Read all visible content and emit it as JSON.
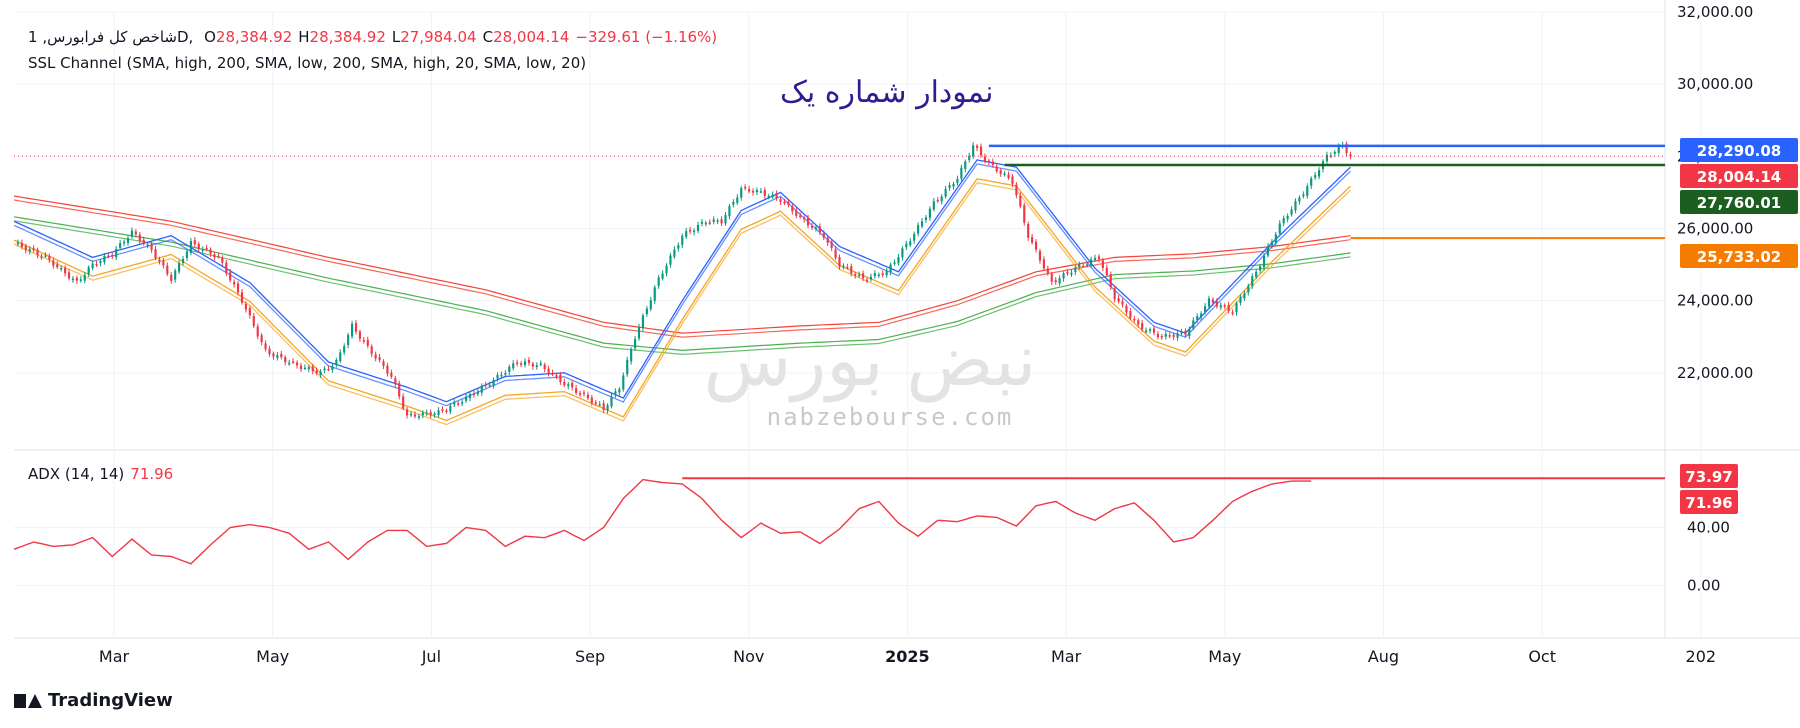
{
  "header": {
    "symbol": "شاخص کل فرابورس, 1D, ",
    "open_label": "O",
    "open": "28,384.92",
    "high_label": "H",
    "high": "28,384.92",
    "low_label": "L",
    "low": "27,984.04",
    "close_label": "C",
    "close": "28,004.14",
    "change": "−329.61 (−1.16%)",
    "indicator": "SSL Channel (SMA, high, 200, SMA, low, 200, SMA, high, 20, SMA, low, 20)",
    "adx_label": "ADX (14, 14)",
    "adx_value": "71.96"
  },
  "annotation_title": "نمودار شماره یک",
  "watermark": {
    "logo_text": "نبض بورس",
    "url": "nabzebourse.com"
  },
  "footer": {
    "brand": "TradingView"
  },
  "colors": {
    "up": "#089981",
    "down": "#f23645",
    "ssl_fast": "#f5a623",
    "ssl_fast_low": "#2962ff",
    "ssl_slow_high": "#f44336",
    "ssl_slow_low": "#4caf50",
    "level_blue": "#2962ff",
    "level_green": "#1b5e20",
    "level_orange": "#f57c00",
    "adx": "#f23645"
  },
  "chart_data": [
    {
      "type": "candlestick",
      "title": "شاخص کل فرابورس, 1D",
      "xlabel": "",
      "ylabel": "",
      "ylim": [
        20000,
        32000
      ],
      "yticks": [
        "22,000.00",
        "24,000.00",
        "26,000.00",
        "28,000.00",
        "30,000.00",
        "32,000.00"
      ],
      "xticks": [
        "Mar",
        "May",
        "Jul",
        "Sep",
        "Nov",
        "2025",
        "Mar",
        "May",
        "Aug",
        "Oct",
        "202"
      ],
      "close_series": [
        [
          0,
          25600
        ],
        [
          8,
          25200
        ],
        [
          16,
          24500
        ],
        [
          20,
          25000
        ],
        [
          25,
          25300
        ],
        [
          30,
          25900
        ],
        [
          35,
          25400
        ],
        [
          40,
          24600
        ],
        [
          45,
          25600
        ],
        [
          52,
          25200
        ],
        [
          58,
          24000
        ],
        [
          64,
          22600
        ],
        [
          72,
          22200
        ],
        [
          78,
          22000
        ],
        [
          82,
          22300
        ],
        [
          86,
          23300
        ],
        [
          90,
          22700
        ],
        [
          96,
          21900
        ],
        [
          100,
          20800
        ],
        [
          108,
          20900
        ],
        [
          115,
          21300
        ],
        [
          122,
          21800
        ],
        [
          128,
          22300
        ],
        [
          134,
          22200
        ],
        [
          140,
          21700
        ],
        [
          146,
          21300
        ],
        [
          150,
          21000
        ],
        [
          154,
          21600
        ],
        [
          158,
          23000
        ],
        [
          164,
          24600
        ],
        [
          170,
          25800
        ],
        [
          176,
          26200
        ],
        [
          180,
          26200
        ],
        [
          185,
          27100
        ],
        [
          190,
          27000
        ],
        [
          195,
          26800
        ],
        [
          200,
          26300
        ],
        [
          206,
          25800
        ],
        [
          210,
          25000
        ],
        [
          216,
          24600
        ],
        [
          222,
          24800
        ],
        [
          228,
          25700
        ],
        [
          234,
          26700
        ],
        [
          240,
          27400
        ],
        [
          244,
          28300
        ],
        [
          248,
          27800
        ],
        [
          254,
          27300
        ],
        [
          258,
          25800
        ],
        [
          264,
          24500
        ],
        [
          270,
          24900
        ],
        [
          276,
          25200
        ],
        [
          280,
          24100
        ],
        [
          286,
          23300
        ],
        [
          292,
          23000
        ],
        [
          298,
          23100
        ],
        [
          304,
          24000
        ],
        [
          310,
          23700
        ],
        [
          316,
          24800
        ],
        [
          322,
          26100
        ],
        [
          328,
          27000
        ],
        [
          334,
          28000
        ],
        [
          338,
          28300
        ],
        [
          340,
          28004
        ]
      ],
      "series": [
        {
          "name": "SSL 20 high",
          "values": [
            [
              0,
              26200
            ],
            [
              20,
              25200
            ],
            [
              40,
              25800
            ],
            [
              60,
              24500
            ],
            [
              80,
              22300
            ],
            [
              100,
              21600
            ],
            [
              110,
              21200
            ],
            [
              125,
              21900
            ],
            [
              140,
              22000
            ],
            [
              155,
              21300
            ],
            [
              170,
              24000
            ],
            [
              185,
              26500
            ],
            [
              195,
              27000
            ],
            [
              210,
              25500
            ],
            [
              225,
              24800
            ],
            [
              245,
              27900
            ],
            [
              255,
              27700
            ],
            [
              275,
              24900
            ],
            [
              290,
              23400
            ],
            [
              298,
              23100
            ],
            [
              320,
              25600
            ],
            [
              340,
              27700
            ]
          ]
        },
        {
          "name": "SSL 20 low",
          "values": [
            [
              0,
              25900
            ],
            [
              20,
              24900
            ],
            [
              40,
              25500
            ],
            [
              60,
              24200
            ],
            [
              80,
              22000
            ],
            [
              100,
              21300
            ],
            [
              110,
              20900
            ],
            [
              125,
              21600
            ],
            [
              140,
              21700
            ],
            [
              155,
              21000
            ],
            [
              170,
              23700
            ],
            [
              185,
              26200
            ],
            [
              195,
              26700
            ],
            [
              210,
              25200
            ],
            [
              225,
              24500
            ],
            [
              245,
              27600
            ],
            [
              255,
              27400
            ],
            [
              275,
              24600
            ],
            [
              290,
              23100
            ],
            [
              298,
              22800
            ],
            [
              320,
              25300
            ],
            [
              340,
              27400
            ]
          ]
        },
        {
          "name": "SSL 200 high",
          "values": [
            [
              0,
              26900
            ],
            [
              40,
              26200
            ],
            [
              80,
              25200
            ],
            [
              120,
              24300
            ],
            [
              150,
              23400
            ],
            [
              170,
              23100
            ],
            [
              200,
              23300
            ],
            [
              220,
              23400
            ],
            [
              240,
              24000
            ],
            [
              260,
              24800
            ],
            [
              280,
              25200
            ],
            [
              300,
              25300
            ],
            [
              320,
              25500
            ],
            [
              340,
              25800
            ]
          ]
        },
        {
          "name": "SSL 200 low",
          "values": [
            [
              0,
              26600
            ],
            [
              40,
              25900
            ],
            [
              80,
              24900
            ],
            [
              120,
              24000
            ],
            [
              150,
              23100
            ],
            [
              170,
              22900
            ],
            [
              200,
              23100
            ],
            [
              220,
              23200
            ],
            [
              240,
              23700
            ],
            [
              260,
              24500
            ],
            [
              280,
              25000
            ],
            [
              300,
              25100
            ],
            [
              320,
              25300
            ],
            [
              340,
              25600
            ]
          ]
        }
      ],
      "levels": [
        {
          "value": 28290.08,
          "label": "28,290.08",
          "color": "#2962ff"
        },
        {
          "value": 28004.14,
          "label": "28,004.14",
          "color": "#f23645"
        },
        {
          "value": 27760.01,
          "label": "27,760.01",
          "color": "#1b5e20"
        },
        {
          "value": 25733.02,
          "label": "25,733.02",
          "color": "#f57c00"
        }
      ]
    },
    {
      "type": "line",
      "title": "ADX (14, 14)",
      "xlabel": "",
      "ylabel": "",
      "ylim": [
        -10,
        90
      ],
      "yticks": [
        "0.00",
        "40.00"
      ],
      "series": [
        {
          "name": "ADX",
          "values": [
            [
              0,
              25
            ],
            [
              5,
              30
            ],
            [
              10,
              27
            ],
            [
              15,
              28
            ],
            [
              20,
              33
            ],
            [
              25,
              20
            ],
            [
              30,
              32
            ],
            [
              35,
              21
            ],
            [
              40,
              20
            ],
            [
              45,
              15
            ],
            [
              50,
              28
            ],
            [
              55,
              40
            ],
            [
              60,
              42
            ],
            [
              65,
              40
            ],
            [
              70,
              36
            ],
            [
              75,
              25
            ],
            [
              80,
              30
            ],
            [
              85,
              18
            ],
            [
              90,
              30
            ],
            [
              95,
              38
            ],
            [
              100,
              38
            ],
            [
              105,
              27
            ],
            [
              110,
              29
            ],
            [
              115,
              40
            ],
            [
              120,
              38
            ],
            [
              125,
              27
            ],
            [
              130,
              34
            ],
            [
              135,
              33
            ],
            [
              140,
              38
            ],
            [
              145,
              31
            ],
            [
              150,
              40
            ],
            [
              155,
              60
            ],
            [
              160,
              73
            ],
            [
              165,
              71
            ],
            [
              170,
              70
            ],
            [
              175,
              60
            ],
            [
              180,
              45
            ],
            [
              185,
              33
            ],
            [
              190,
              43
            ],
            [
              195,
              36
            ],
            [
              200,
              37
            ],
            [
              205,
              29
            ],
            [
              210,
              39
            ],
            [
              215,
              53
            ],
            [
              220,
              58
            ],
            [
              225,
              43
            ],
            [
              230,
              34
            ],
            [
              235,
              45
            ],
            [
              240,
              44
            ],
            [
              245,
              48
            ],
            [
              250,
              47
            ],
            [
              255,
              41
            ],
            [
              260,
              55
            ],
            [
              265,
              58
            ],
            [
              270,
              50
            ],
            [
              275,
              45
            ],
            [
              280,
              53
            ],
            [
              285,
              57
            ],
            [
              290,
              45
            ],
            [
              295,
              30
            ],
            [
              300,
              33
            ],
            [
              305,
              45
            ],
            [
              310,
              58
            ],
            [
              315,
              65
            ],
            [
              320,
              70
            ],
            [
              325,
              72
            ],
            [
              330,
              72
            ]
          ]
        }
      ],
      "levels": [
        {
          "value": 73.97,
          "label": "73.97",
          "color": "#f23645"
        },
        {
          "value": 71.96,
          "label": "71.96",
          "color": "#f23645"
        }
      ]
    }
  ]
}
